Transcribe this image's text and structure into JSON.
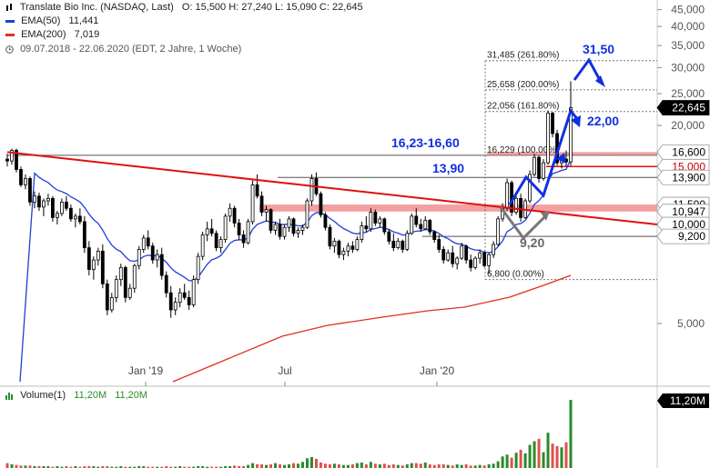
{
  "header": {
    "title": "Translate Bio Inc. (NASDAQ, Last)",
    "ohlc": "O: 15,500  H: 27,240  L: 15,090  C: 22,645",
    "ema50_label": "EMA(50)",
    "ema50_value": "11,441",
    "ema200_label": "EMA(200)",
    "ema200_value": "7,019",
    "range": "09.07.2018 - 22.06.2020  (EDT, 2 Jahre, 1 Woche)"
  },
  "volume_legend": {
    "label": "Volume(1)",
    "v1": "11,20M",
    "v2": "11,20M"
  },
  "colors": {
    "ema50": "#1e3fd8",
    "ema200": "#e03020",
    "trend": "#e01010",
    "zone": "#f08080",
    "annotation": "#1030e0",
    "candle": "#000000",
    "volume_up": "#2a8a2a",
    "volume_down": "#e05050"
  },
  "chart_data": {
    "type": "candlestick",
    "y_scale": "log",
    "y_ticks": [
      "45,000",
      "40,000",
      "35,000",
      "30,000",
      "25,000",
      "20,000",
      "15,000",
      "10,000",
      "5,000"
    ],
    "x_ticks": [
      "Jan '19",
      "Jul",
      "Jan '20"
    ],
    "price_tags": [
      {
        "label": "22,645",
        "value": 22.645,
        "bg": "#000000",
        "fg": "#ffffff"
      },
      {
        "label": "16,600",
        "value": 16.6,
        "bg": "#ffffff",
        "fg": "#000000"
      },
      {
        "label": "15,000",
        "value": 15.0,
        "bg": "#ffffff",
        "fg": "#cc0000"
      },
      {
        "label": "13,900",
        "value": 13.9,
        "bg": "#ffffff",
        "fg": "#000000"
      },
      {
        "label": "11,500",
        "value": 11.5,
        "bg": "#ffffff",
        "fg": "#000000"
      },
      {
        "label": "10,947",
        "value": 10.947,
        "bg": "#ffffff",
        "fg": "#000000"
      },
      {
        "label": "10,000",
        "value": 10.0,
        "bg": "#ffffff",
        "fg": "#000000"
      },
      {
        "label": "9,200",
        "value": 9.2,
        "bg": "#ffffff",
        "fg": "#000000"
      }
    ],
    "fib_levels": [
      {
        "label": "31,485 (261.80%)",
        "value": 31.485
      },
      {
        "label": "25,658 (200.00%)",
        "value": 25.658
      },
      {
        "label": "22,056 (161.80%)",
        "value": 22.056
      },
      {
        "label": "16,229 (100.00%)",
        "value": 16.229
      },
      {
        "label": "6,800 (0.00%)",
        "value": 6.8
      }
    ],
    "annotations": [
      {
        "text": "31,50"
      },
      {
        "text": "22,00"
      },
      {
        "text": "16,23-16,60"
      },
      {
        "text": "13,90"
      },
      {
        "text": "9,20"
      }
    ],
    "volume_tag": "11,20M",
    "candles": [
      [
        15.8,
        16.4,
        15.0,
        15.6
      ],
      [
        15.6,
        17.0,
        15.2,
        16.8
      ],
      [
        16.8,
        17.0,
        14.4,
        14.7
      ],
      [
        14.7,
        15.0,
        13.0,
        13.2
      ],
      [
        13.2,
        14.2,
        12.8,
        13.8
      ],
      [
        13.8,
        14.0,
        11.4,
        11.7
      ],
      [
        11.7,
        12.6,
        11.2,
        12.2
      ],
      [
        12.2,
        12.5,
        11.0,
        11.3
      ],
      [
        11.3,
        12.0,
        10.6,
        11.8
      ],
      [
        11.8,
        12.4,
        11.4,
        12.0
      ],
      [
        12.0,
        12.2,
        10.2,
        10.5
      ],
      [
        10.5,
        11.0,
        10.0,
        10.8
      ],
      [
        10.8,
        12.0,
        10.6,
        11.7
      ],
      [
        11.7,
        12.2,
        11.0,
        11.2
      ],
      [
        11.2,
        11.5,
        10.2,
        10.4
      ],
      [
        10.4,
        10.8,
        9.8,
        10.6
      ],
      [
        10.6,
        11.2,
        10.0,
        10.2
      ],
      [
        10.2,
        10.6,
        8.2,
        8.5
      ],
      [
        8.5,
        8.9,
        7.0,
        7.3
      ],
      [
        7.3,
        8.0,
        6.8,
        7.8
      ],
      [
        7.8,
        8.5,
        7.5,
        8.3
      ],
      [
        8.3,
        8.7,
        6.4,
        6.6
      ],
      [
        6.6,
        6.8,
        5.3,
        5.5
      ],
      [
        5.5,
        6.2,
        5.4,
        6.0
      ],
      [
        6.0,
        7.0,
        5.8,
        6.8
      ],
      [
        6.8,
        7.6,
        6.5,
        7.4
      ],
      [
        7.4,
        7.5,
        5.8,
        6.0
      ],
      [
        6.0,
        6.6,
        5.9,
        6.4
      ],
      [
        6.4,
        7.6,
        6.2,
        7.5
      ],
      [
        7.5,
        8.6,
        7.3,
        8.4
      ],
      [
        8.4,
        9.3,
        8.2,
        9.1
      ],
      [
        9.1,
        9.6,
        8.4,
        8.6
      ],
      [
        8.6,
        8.8,
        7.6,
        7.8
      ],
      [
        7.8,
        8.4,
        7.4,
        8.1
      ],
      [
        8.1,
        8.5,
        6.8,
        7.0
      ],
      [
        7.0,
        7.2,
        6.0,
        6.2
      ],
      [
        6.2,
        6.5,
        5.2,
        5.5
      ],
      [
        5.5,
        6.0,
        5.3,
        5.8
      ],
      [
        5.8,
        6.4,
        5.6,
        6.2
      ],
      [
        6.2,
        6.6,
        5.9,
        6.0
      ],
      [
        6.0,
        6.3,
        5.5,
        5.7
      ],
      [
        5.7,
        7.0,
        5.6,
        6.8
      ],
      [
        6.8,
        8.2,
        6.6,
        8.0
      ],
      [
        8.0,
        9.5,
        7.8,
        9.3
      ],
      [
        9.3,
        10.2,
        8.9,
        9.7
      ],
      [
        9.7,
        10.4,
        9.2,
        9.4
      ],
      [
        9.4,
        9.6,
        8.3,
        8.5
      ],
      [
        8.5,
        9.2,
        8.2,
        9.0
      ],
      [
        9.0,
        10.8,
        8.8,
        10.6
      ],
      [
        10.6,
        11.6,
        10.2,
        11.2
      ],
      [
        11.2,
        11.4,
        9.8,
        10.1
      ],
      [
        10.1,
        10.4,
        9.0,
        9.3
      ],
      [
        9.3,
        9.6,
        8.5,
        8.8
      ],
      [
        8.8,
        10.4,
        8.7,
        10.2
      ],
      [
        10.2,
        13.6,
        10.0,
        13.2
      ],
      [
        13.2,
        14.2,
        12.0,
        12.2
      ],
      [
        12.2,
        12.6,
        10.6,
        10.9
      ],
      [
        10.9,
        11.4,
        10.2,
        11.1
      ],
      [
        11.1,
        11.2,
        9.4,
        9.6
      ],
      [
        9.6,
        10.2,
        9.3,
        10.0
      ],
      [
        10.0,
        10.4,
        9.0,
        9.2
      ],
      [
        9.2,
        10.0,
        9.0,
        9.8
      ],
      [
        9.8,
        10.6,
        9.5,
        10.4
      ],
      [
        10.4,
        10.5,
        9.2,
        9.4
      ],
      [
        9.4,
        9.8,
        9.1,
        9.6
      ],
      [
        9.6,
        10.0,
        9.3,
        9.8
      ],
      [
        9.8,
        12.0,
        9.7,
        11.8
      ],
      [
        11.8,
        14.2,
        11.4,
        13.8
      ],
      [
        13.8,
        14.4,
        12.2,
        12.4
      ],
      [
        12.4,
        12.6,
        10.5,
        10.7
      ],
      [
        10.7,
        10.9,
        9.6,
        9.8
      ],
      [
        9.8,
        10.0,
        8.4,
        8.6
      ],
      [
        8.6,
        9.1,
        8.2,
        8.9
      ],
      [
        8.9,
        9.0,
        7.9,
        8.1
      ],
      [
        8.1,
        8.5,
        7.8,
        8.3
      ],
      [
        8.3,
        8.8,
        8.0,
        8.6
      ],
      [
        8.6,
        8.9,
        8.2,
        8.4
      ],
      [
        8.4,
        9.2,
        8.3,
        9.0
      ],
      [
        9.0,
        10.2,
        8.8,
        9.9
      ],
      [
        9.9,
        10.6,
        9.5,
        9.7
      ],
      [
        9.7,
        11.2,
        9.5,
        10.9
      ],
      [
        10.9,
        11.1,
        9.9,
        10.1
      ],
      [
        10.1,
        10.6,
        9.8,
        10.4
      ],
      [
        10.4,
        10.5,
        9.3,
        9.5
      ],
      [
        9.5,
        9.7,
        8.7,
        8.9
      ],
      [
        8.9,
        9.4,
        8.3,
        8.5
      ],
      [
        8.5,
        9.1,
        8.4,
        8.9
      ],
      [
        8.9,
        9.0,
        8.2,
        8.4
      ],
      [
        8.4,
        9.6,
        8.3,
        9.4
      ],
      [
        9.4,
        10.8,
        9.3,
        10.6
      ],
      [
        10.6,
        11.2,
        9.8,
        10.0
      ],
      [
        10.0,
        10.4,
        9.5,
        9.7
      ],
      [
        9.7,
        10.6,
        9.6,
        10.3
      ],
      [
        10.3,
        10.4,
        9.3,
        9.5
      ],
      [
        9.5,
        9.6,
        8.8,
        9.0
      ],
      [
        9.0,
        9.3,
        8.2,
        8.4
      ],
      [
        8.4,
        8.6,
        7.6,
        7.8
      ],
      [
        7.8,
        8.4,
        7.7,
        8.2
      ],
      [
        8.2,
        8.6,
        7.4,
        7.6
      ],
      [
        7.6,
        8.0,
        7.3,
        7.9
      ],
      [
        7.9,
        8.8,
        7.8,
        8.6
      ],
      [
        8.6,
        8.7,
        7.6,
        7.8
      ],
      [
        7.8,
        8.1,
        7.2,
        7.4
      ],
      [
        7.4,
        8.0,
        7.3,
        7.9
      ],
      [
        7.9,
        8.4,
        7.6,
        8.2
      ],
      [
        8.2,
        8.3,
        7.4,
        7.5
      ],
      [
        7.5,
        8.2,
        7.1,
        8.1
      ],
      [
        8.1,
        8.9,
        7.9,
        8.7
      ],
      [
        8.7,
        10.6,
        8.6,
        10.4
      ],
      [
        10.4,
        11.6,
        10.2,
        11.2
      ],
      [
        11.2,
        13.8,
        11.0,
        13.4
      ],
      [
        13.4,
        13.6,
        10.6,
        10.9
      ],
      [
        10.9,
        12.2,
        10.7,
        12.0
      ],
      [
        12.0,
        12.4,
        10.2,
        10.5
      ],
      [
        10.5,
        12.0,
        10.4,
        11.8
      ],
      [
        11.8,
        14.6,
        11.6,
        14.2
      ],
      [
        14.2,
        16.4,
        14.0,
        16.0
      ],
      [
        16.0,
        16.2,
        13.4,
        13.8
      ],
      [
        13.8,
        15.8,
        13.6,
        15.4
      ],
      [
        15.4,
        22.2,
        15.2,
        21.8
      ],
      [
        21.8,
        22.0,
        18.4,
        18.9
      ],
      [
        18.9,
        19.4,
        15.1,
        15.4
      ],
      [
        15.4,
        16.2,
        14.8,
        15.8
      ],
      [
        15.8,
        16.8,
        15.0,
        15.5
      ],
      [
        15.5,
        27.24,
        15.09,
        22.645
      ]
    ],
    "volume": [
      0.8,
      0.6,
      0.5,
      0.4,
      0.4,
      0.4,
      0.3,
      0.3,
      0.3,
      0.3,
      0.2,
      0.3,
      0.2,
      0.3,
      0.2,
      0.3,
      0.2,
      0.3,
      0.3,
      0.3,
      0.2,
      0.3,
      0.3,
      0.2,
      0.2,
      0.3,
      0.2,
      0.2,
      0.2,
      0.3,
      0.3,
      0.2,
      0.2,
      0.2,
      0.2,
      0.3,
      0.2,
      0.2,
      0.3,
      0.2,
      0.2,
      0.2,
      0.3,
      0.3,
      0.2,
      0.2,
      0.2,
      0.2,
      0.3,
      0.3,
      0.4,
      0.3,
      0.3,
      0.5,
      0.8,
      0.6,
      0.6,
      0.5,
      0.6,
      0.8,
      0.6,
      0.5,
      0.6,
      0.8,
      0.7,
      1.0,
      1.6,
      1.8,
      1.5,
      0.9,
      0.7,
      0.6,
      0.7,
      0.6,
      0.5,
      0.5,
      0.6,
      0.8,
      0.9,
      0.6,
      1.0,
      0.7,
      0.6,
      0.7,
      0.5,
      0.6,
      0.5,
      0.4,
      0.6,
      0.8,
      0.8,
      0.7,
      0.9,
      0.6,
      0.5,
      0.6,
      0.6,
      0.5,
      0.4,
      0.6,
      0.5,
      0.6,
      0.4,
      0.4,
      0.5,
      0.4,
      0.6,
      0.7,
      1.1,
      1.9,
      2.2,
      1.7,
      2.5,
      3.0,
      2.4,
      3.8,
      4.4,
      4.8,
      2.6,
      5.8,
      4.0,
      3.6,
      3.4,
      4.2,
      11.2
    ]
  }
}
